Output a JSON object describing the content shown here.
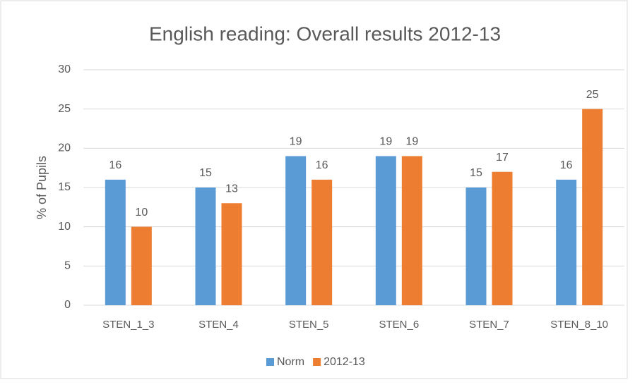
{
  "chart_data": {
    "type": "bar",
    "title": "English reading: Overall results 2012-13",
    "y_label": "% of Pupils",
    "categories": [
      "STEN_1_3",
      "STEN_4",
      "STEN_5",
      "STEN_6",
      "STEN_7",
      "STEN_8_10"
    ],
    "series": [
      {
        "name": "Norm",
        "color": "#5b9bd5",
        "values": [
          16,
          15,
          19,
          19,
          15,
          16
        ]
      },
      {
        "name": "2012-13",
        "color": "#ed7d31",
        "values": [
          10,
          13,
          16,
          19,
          17,
          25
        ]
      }
    ],
    "ylim": [
      0,
      30
    ],
    "yticks": [
      0,
      5,
      10,
      15,
      20,
      25,
      30
    ],
    "grid": true,
    "legend": "bottom"
  }
}
